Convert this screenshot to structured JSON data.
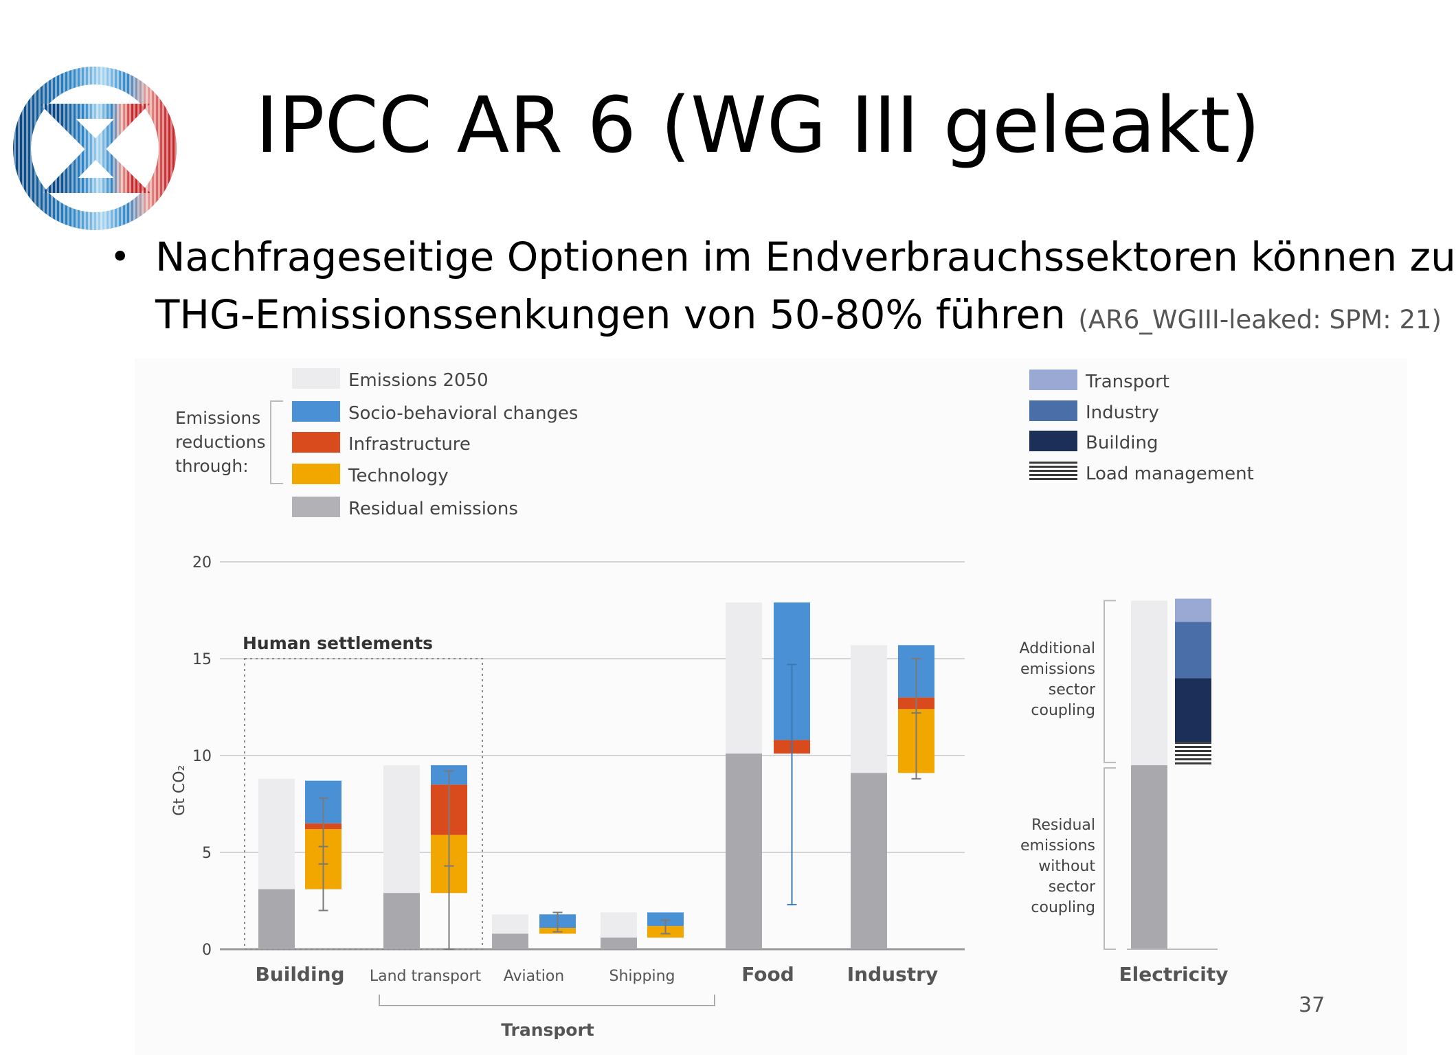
{
  "slide": {
    "title": "IPCC AR 6 (WG III geleakt)",
    "bullet_line1": "Nachfrageseitige Optionen im Endverbrauchssektoren können zu",
    "bullet_line2": "THG-Emissionssenkungen von 50-80% führen",
    "bullet_ref": "(AR6_WGIII-leaked: SPM: 21)",
    "page_number": "37",
    "logo_icon": "extinction-rebellion-hourglass-icon"
  },
  "chart_data": {
    "type": "bar",
    "ylabel": "Gt CO₂",
    "ylim": [
      0,
      20
    ],
    "yticks": [
      0,
      5,
      10,
      15,
      20
    ],
    "legend_left": {
      "bracket_label": [
        "Emissions",
        "reductions",
        "through:"
      ],
      "items": [
        {
          "label": "Emissions 2050",
          "color": "#ececef"
        },
        {
          "label": "Socio-behavioral changes",
          "color": "#4a90d4"
        },
        {
          "label": "Infrastructure",
          "color": "#d94a1c"
        },
        {
          "label": "Technology",
          "color": "#f2a600"
        },
        {
          "label": "Residual emissions",
          "color": "#b2b2b6"
        }
      ]
    },
    "legend_right": {
      "items": [
        {
          "label": "Transport",
          "color": "#9aa8d4"
        },
        {
          "label": "Industry",
          "color": "#4a6ea8"
        },
        {
          "label": "Building",
          "color": "#1c2f58"
        },
        {
          "label": "Load management",
          "color": "#555555",
          "pattern": "stripes"
        }
      ]
    },
    "group_label": "Human settlements",
    "transport_label": "Transport",
    "colors": {
      "emissions_2050": "#ececef",
      "residual": "#a9a9ad",
      "socio": "#4a90d4",
      "infrastructure": "#d94a1c",
      "technology": "#f2a600",
      "transport": "#9aa8d4",
      "industry": "#4a6ea8",
      "building": "#1c2f58",
      "axis": "#bbbbbb",
      "text": "#444444",
      "errorbar_light": "#7a7a7a",
      "errorbar_food": "#3a7ab0"
    },
    "sectors": [
      {
        "name": "Building",
        "emissions_2050": 8.8,
        "residual": 3.1,
        "technology": 3.1,
        "infrastructure": 0.3,
        "socio": 2.2,
        "errorbar": [
          2.0,
          7.8
        ],
        "midpoints": [
          4.4,
          5.3
        ]
      },
      {
        "name": "Land transport",
        "emissions_2050": 9.5,
        "residual": 2.9,
        "technology": 3.0,
        "infrastructure": 2.6,
        "socio": 1.0,
        "errorbar": [
          0.0,
          9.2
        ],
        "midpoints": [
          4.3
        ]
      },
      {
        "name": "Aviation",
        "emissions_2050": 1.8,
        "residual": 0.8,
        "technology": 0.3,
        "infrastructure": 0.0,
        "socio": 0.7,
        "errorbar": [
          0.9,
          1.9
        ],
        "midpoints": []
      },
      {
        "name": "Shipping",
        "emissions_2050": 1.9,
        "residual": 0.6,
        "technology": 0.6,
        "infrastructure": 0.0,
        "socio": 0.7,
        "errorbar": [
          0.8,
          1.5
        ],
        "midpoints": []
      },
      {
        "name": "Food",
        "emissions_2050": 17.9,
        "residual": 10.1,
        "technology": 0.0,
        "infrastructure": 0.7,
        "socio": 7.1,
        "errorbar": [
          2.3,
          14.7
        ],
        "midpoints": []
      },
      {
        "name": "Industry",
        "emissions_2050": 15.7,
        "residual": 9.1,
        "technology": 3.3,
        "infrastructure": 0.6,
        "socio": 2.7,
        "errorbar": [
          8.8,
          15.0
        ],
        "midpoints": [
          12.2
        ]
      }
    ],
    "electricity": {
      "name": "Electricity",
      "total": 18.0,
      "residual": 9.5,
      "stack": [
        {
          "label": "Load management",
          "value": 1.2
        },
        {
          "label": "Building",
          "value": 3.3
        },
        {
          "label": "Industry",
          "value": 2.9
        },
        {
          "label": "Transport",
          "value": 1.2
        }
      ],
      "bracket_top": [
        "Additional",
        "emissions",
        "sector",
        "coupling"
      ],
      "bracket_bottom": [
        "Residual",
        "emissions",
        "without",
        "sector",
        "coupling"
      ]
    }
  }
}
